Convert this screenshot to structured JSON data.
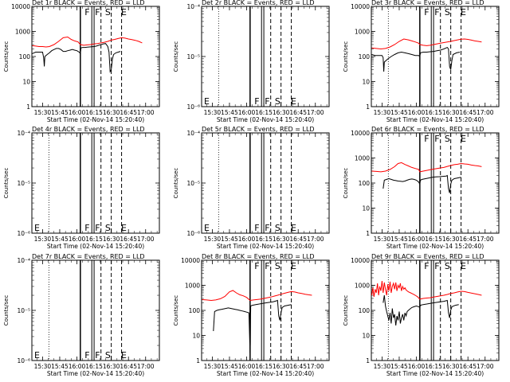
{
  "figure": {
    "xaxis_title": "Start Time (02-Nov-14 15:20:40)",
    "xtick_labels": [
      "15:30",
      "15:45",
      "16:00",
      "16:15",
      "16:30",
      "16:45",
      "17:00"
    ],
    "xtick_minutes": [
      930,
      945,
      960,
      975,
      990,
      1005,
      1020
    ],
    "xrange_minutes": [
      920.67,
      1032
    ],
    "ylabel": "Counts/sec",
    "line_colors": {
      "events": "#000000",
      "lld": "#ff0000"
    },
    "marker_lines": {
      "dotted": [
        935.5
      ],
      "solid": [
        963,
        973,
        975
      ],
      "dashed": [
        981,
        990,
        999
      ],
      "letters": [
        {
          "text": "F",
          "x": 969
        },
        {
          "text": "F",
          "x": 978
        },
        {
          "text": "S",
          "x": 987
        },
        {
          "text": "E",
          "x": 1001
        }
      ]
    }
  },
  "chart_data": [
    {
      "type": "line",
      "title": "Det  1r BLACK = Events, RED = LLD",
      "yscale": "log",
      "ylim": [
        1,
        10000
      ],
      "ytick_labels": [
        "1",
        "10",
        "100",
        "1000",
        "10000"
      ],
      "letters_position": "top",
      "dotted_line": false,
      "series": [
        {
          "key": "events",
          "x": [
            921,
            922.5,
            924,
            926,
            928,
            930,
            931,
            931.5,
            932,
            934,
            936,
            938,
            940,
            942,
            944,
            946,
            948,
            950,
            952,
            954,
            956,
            958,
            960,
            962,
            963,
            963.5,
            965,
            967,
            969,
            971,
            973,
            975,
            977,
            979,
            981,
            983,
            985,
            987,
            988,
            989,
            990,
            991,
            992,
            994,
            996,
            998
          ],
          "values": [
            130,
            140,
            150,
            150,
            150,
            150,
            90,
            40,
            100,
            120,
            140,
            170,
            190,
            210,
            210,
            190,
            160,
            160,
            170,
            180,
            190,
            180,
            170,
            150,
            130,
            220,
            230,
            230,
            235,
            240,
            245,
            250,
            260,
            280,
            300,
            320,
            330,
            250,
            150,
            25,
            30,
            80,
            120,
            140,
            150,
            160
          ]
        },
        {
          "key": "lld",
          "x": [
            921,
            924,
            927,
            930,
            933,
            936,
            940,
            944,
            948,
            952,
            955,
            958,
            961,
            963,
            966,
            969,
            972,
            975,
            978,
            981,
            984,
            987,
            990,
            993,
            996,
            999,
            1002,
            1005,
            1008,
            1011,
            1014,
            1017
          ],
          "values": [
            270,
            260,
            250,
            250,
            240,
            250,
            300,
            400,
            560,
            600,
            480,
            420,
            380,
            300,
            280,
            290,
            300,
            320,
            330,
            350,
            370,
            400,
            450,
            480,
            520,
            560,
            540,
            500,
            470,
            440,
            400,
            350
          ]
        }
      ]
    },
    {
      "type": "line",
      "title": "Det  2r BLACK = Events, RED = LLD",
      "yscale": "log",
      "ylim": [
        1e-06,
        0.0001
      ],
      "ytick_labels": [
        "10⁻⁶",
        "10⁻⁵",
        "10⁻⁴"
      ],
      "letters_position": "bottom",
      "dotted_line": true,
      "series": []
    },
    {
      "type": "line",
      "title": "Det  3r BLACK = Events, RED = LLD",
      "yscale": "log",
      "ylim": [
        1,
        10000
      ],
      "ytick_labels": [
        "1",
        "10",
        "100",
        "1000",
        "10000"
      ],
      "letters_position": "top",
      "dotted_line": true,
      "series": [
        {
          "key": "events",
          "x": [
            921,
            924,
            927,
            930,
            931,
            931.5,
            932,
            935,
            938,
            941,
            944,
            947,
            950,
            953,
            956,
            959,
            962,
            963,
            963.5,
            966,
            969,
            972,
            975,
            978,
            981,
            984,
            987,
            988,
            989,
            990,
            991,
            992,
            995,
            998
          ],
          "values": [
            120,
            110,
            110,
            110,
            90,
            25,
            60,
            80,
            100,
            120,
            140,
            150,
            140,
            130,
            120,
            110,
            110,
            100,
            140,
            150,
            150,
            155,
            160,
            170,
            180,
            200,
            230,
            200,
            40,
            30,
            70,
            120,
            140,
            150
          ]
        },
        {
          "key": "lld",
          "x": [
            921,
            925,
            929,
            933,
            937,
            941,
            945,
            949,
            953,
            956,
            959,
            962,
            963,
            966,
            969,
            972,
            975,
            978,
            981,
            984,
            987,
            990,
            993,
            996,
            999,
            1002,
            1005,
            1008,
            1011,
            1014,
            1017
          ],
          "values": [
            220,
            210,
            200,
            210,
            240,
            300,
            400,
            500,
            460,
            420,
            380,
            340,
            300,
            280,
            270,
            280,
            300,
            320,
            340,
            360,
            380,
            400,
            430,
            460,
            490,
            500,
            480,
            450,
            420,
            400,
            380
          ]
        }
      ]
    },
    {
      "type": "line",
      "title": "Det  4r BLACK = Events, RED = LLD",
      "yscale": "log",
      "ylim": [
        1e-06,
        0.0001
      ],
      "ytick_labels": [
        "10⁻⁶",
        "10⁻⁵",
        "10⁻⁴"
      ],
      "letters_position": "bottom",
      "dotted_line": true,
      "series": []
    },
    {
      "type": "line",
      "title": "Det  5r BLACK = Events, RED = LLD",
      "yscale": "log",
      "ylim": [
        1e-06,
        0.0001
      ],
      "ytick_labels": [
        "10⁻⁶",
        "10⁻⁵",
        "10⁻⁴"
      ],
      "letters_position": "bottom",
      "dotted_line": true,
      "series": []
    },
    {
      "type": "line",
      "title": "Det  6r BLACK = Events, RED = LLD",
      "yscale": "log",
      "ylim": [
        1,
        10000
      ],
      "ytick_labels": [
        "1",
        "10",
        "100",
        "1000",
        "10000"
      ],
      "letters_position": "top",
      "dotted_line": true,
      "series": [
        {
          "key": "events",
          "x": [
            931,
            932,
            934,
            936,
            938,
            940,
            942,
            944,
            946,
            948,
            950,
            952,
            954,
            956,
            958,
            960,
            962,
            963,
            963.5,
            965,
            968,
            971,
            974,
            977,
            980,
            983,
            986,
            987,
            988,
            989,
            990,
            991,
            993,
            996,
            999
          ],
          "values": [
            60,
            130,
            140,
            150,
            140,
            130,
            125,
            120,
            118,
            115,
            120,
            130,
            140,
            145,
            140,
            130,
            110,
            90,
            130,
            140,
            150,
            160,
            170,
            175,
            180,
            185,
            190,
            200,
            60,
            40,
            90,
            130,
            150,
            160,
            170
          ]
        },
        {
          "key": "lld",
          "x": [
            921,
            925,
            929,
            933,
            937,
            941,
            944,
            947,
            950,
            953,
            956,
            959,
            962,
            963,
            966,
            969,
            972,
            975,
            978,
            981,
            984,
            987,
            990,
            993,
            996,
            999,
            1002,
            1005,
            1008,
            1011,
            1014,
            1017
          ],
          "values": [
            300,
            290,
            280,
            300,
            350,
            450,
            600,
            650,
            550,
            480,
            420,
            380,
            350,
            280,
            300,
            320,
            340,
            360,
            380,
            400,
            420,
            460,
            500,
            540,
            560,
            600,
            580,
            560,
            520,
            500,
            480,
            450
          ]
        }
      ]
    },
    {
      "type": "line",
      "title": "Det  7r BLACK = Events, RED = LLD",
      "yscale": "log",
      "ylim": [
        1e-06,
        0.0001
      ],
      "ytick_labels": [
        "10⁻⁶",
        "10⁻⁵",
        "10⁻⁴"
      ],
      "letters_position": "bottom",
      "dotted_line": true,
      "series": []
    },
    {
      "type": "line",
      "title": "Det  8r BLACK = Events, RED = LLD",
      "yscale": "log",
      "ylim": [
        1,
        10000
      ],
      "ytick_labels": [
        "1",
        "10",
        "100",
        "1000",
        "10000"
      ],
      "letters_position": "top",
      "dotted_line": false,
      "series": [
        {
          "key": "events",
          "x": [
            931,
            932,
            934,
            936,
            938,
            940,
            942,
            944,
            946,
            948,
            950,
            952,
            954,
            956,
            958,
            960,
            962,
            963,
            963.2,
            963.5,
            965,
            968,
            971,
            974,
            977,
            980,
            983,
            986,
            987,
            988,
            989,
            990,
            991,
            993,
            996,
            999
          ],
          "values": [
            15,
            90,
            100,
            105,
            110,
            115,
            120,
            125,
            120,
            115,
            110,
            105,
            100,
            95,
            90,
            85,
            80,
            2,
            5,
            150,
            160,
            170,
            180,
            190,
            200,
            210,
            220,
            240,
            250,
            60,
            40,
            80,
            130,
            150,
            160,
            170
          ]
        },
        {
          "key": "lld",
          "x": [
            921,
            925,
            929,
            933,
            937,
            941,
            945,
            948,
            951,
            954,
            957,
            960,
            963,
            966,
            969,
            972,
            975,
            978,
            981,
            984,
            987,
            990,
            993,
            996,
            999,
            1002,
            1005,
            1008,
            1011,
            1014,
            1017
          ],
          "values": [
            270,
            260,
            250,
            260,
            290,
            360,
            550,
            620,
            500,
            420,
            380,
            330,
            250,
            260,
            270,
            280,
            300,
            320,
            340,
            370,
            400,
            440,
            480,
            520,
            560,
            540,
            500,
            470,
            440,
            420,
            400
          ]
        }
      ]
    },
    {
      "type": "line",
      "title": "Det  9r BLACK = Events, RED = LLD",
      "yscale": "log",
      "ylim": [
        1,
        10000
      ],
      "ytick_labels": [
        "1",
        "10",
        "100",
        "1000",
        "10000"
      ],
      "letters_position": "top",
      "dotted_line": true,
      "series": [
        {
          "key": "events",
          "x": [
            931,
            932,
            933,
            934,
            935,
            936,
            937,
            938,
            939,
            940,
            941,
            942,
            943,
            944,
            945,
            946,
            947,
            948,
            949,
            950,
            951,
            952,
            953,
            954,
            956,
            958,
            960,
            962,
            963,
            963.5,
            966,
            969,
            972,
            975,
            978,
            981,
            984,
            987,
            988,
            989,
            990,
            991,
            994,
            997
          ],
          "values": [
            200,
            400,
            150,
            90,
            60,
            40,
            80,
            30,
            120,
            50,
            70,
            25,
            60,
            40,
            90,
            30,
            50,
            70,
            40,
            80,
            60,
            90,
            100,
            110,
            130,
            140,
            150,
            140,
            130,
            160,
            170,
            180,
            190,
            200,
            210,
            220,
            230,
            250,
            80,
            50,
            100,
            140,
            160,
            170
          ]
        },
        {
          "key": "lld",
          "x": [
            921,
            922,
            923,
            924,
            925,
            926,
            927,
            928,
            929,
            930,
            931,
            932,
            933,
            934,
            935,
            936,
            937,
            938,
            939,
            940,
            941,
            942,
            943,
            944,
            945,
            946,
            947,
            948,
            949,
            950,
            951,
            952,
            953,
            955,
            957,
            959,
            961,
            963,
            966,
            969,
            972,
            975,
            978,
            981,
            984,
            987,
            990,
            993,
            996,
            999,
            1002,
            1005,
            1008,
            1011,
            1014,
            1017
          ],
          "values": [
            400,
            800,
            350,
            700,
            500,
            1200,
            400,
            900,
            600,
            1500,
            500,
            1300,
            700,
            400,
            1100,
            600,
            1400,
            500,
            900,
            1200,
            700,
            1300,
            600,
            1000,
            800,
            1200,
            600,
            900,
            700,
            800,
            650,
            600,
            550,
            500,
            450,
            400,
            350,
            280,
            300,
            310,
            320,
            340,
            360,
            380,
            400,
            430,
            470,
            500,
            540,
            580,
            560,
            520,
            490,
            460,
            430,
            400
          ]
        }
      ]
    }
  ]
}
